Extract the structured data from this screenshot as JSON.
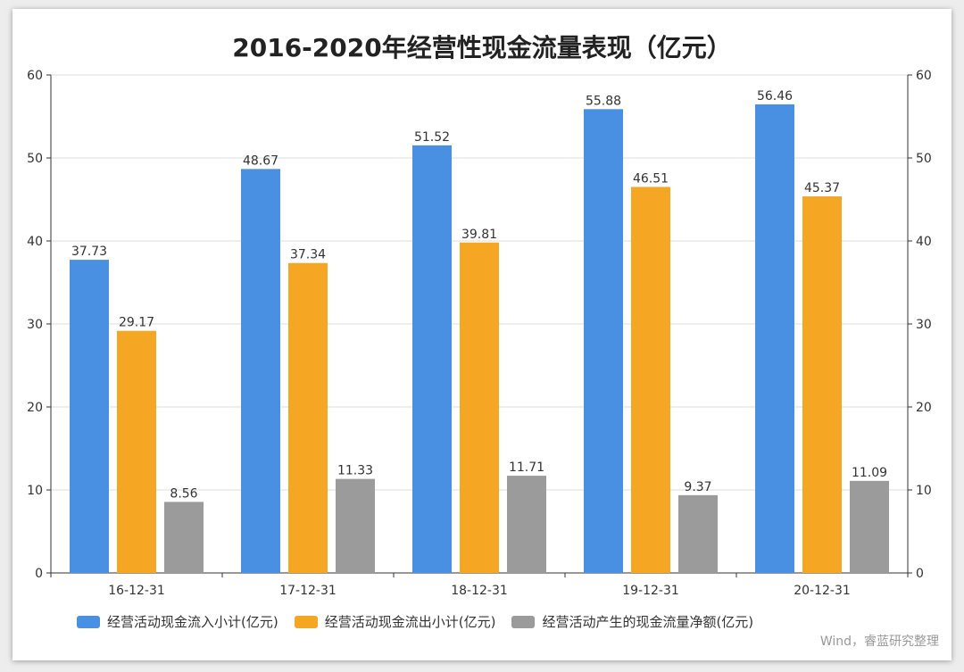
{
  "chart_data": {
    "type": "bar",
    "title": "2016-2020年经营性现金流量表现（亿元）",
    "categories": [
      "16-12-31",
      "17-12-31",
      "18-12-31",
      "19-12-31",
      "20-12-31"
    ],
    "series": [
      {
        "name": "经营活动现金流入小计(亿元)",
        "color": "#4a90e2",
        "values": [
          37.73,
          48.67,
          51.52,
          55.88,
          56.46
        ],
        "labels": [
          "37.73",
          "48.67",
          "51.52",
          "55.88",
          "56.46"
        ]
      },
      {
        "name": "经营活动现金流出小计(亿元)",
        "color": "#f5a623",
        "values": [
          29.17,
          37.34,
          39.81,
          46.51,
          45.37
        ],
        "labels": [
          "29.17",
          "37.34",
          "39.81",
          "46.51",
          "45.37"
        ]
      },
      {
        "name": "经营活动产生的现金流量净额(亿元)",
        "color": "#9b9b9b",
        "values": [
          8.56,
          11.33,
          11.71,
          9.37,
          11.09
        ],
        "labels": [
          "8.56",
          "11.33",
          "11.71",
          "9.37",
          "11.09"
        ]
      }
    ],
    "ylim": [
      0,
      60
    ],
    "yticks": [
      "0",
      "10",
      "20",
      "30",
      "40",
      "50",
      "60"
    ],
    "y2ticks": [
      "0",
      "10",
      "20",
      "30",
      "40",
      "50",
      "60"
    ],
    "grid": true,
    "legend_position": "bottom"
  },
  "source_note": "Wind，睿蓝研究整理"
}
